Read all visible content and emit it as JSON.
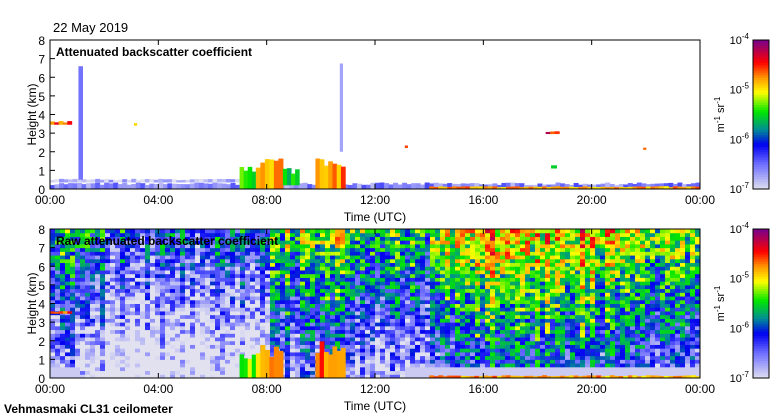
{
  "header": {
    "date": "22 May 2019"
  },
  "footer": {
    "instrument": "Vehmasmaki CL31 ceilometer"
  },
  "chart_data": [
    {
      "type": "heatmap",
      "title": "Attenuated backscatter coefficient",
      "xlabel": "Time (UTC)",
      "ylabel": "Height (km)",
      "xlim": [
        0,
        24
      ],
      "ylim": [
        0,
        8
      ],
      "xticks": [
        "00:00",
        "04:00",
        "08:00",
        "12:00",
        "16:00",
        "20:00",
        "00:00"
      ],
      "yticks": [
        "0",
        "1",
        "2",
        "3",
        "4",
        "5",
        "6",
        "7",
        "8"
      ],
      "colorbar": {
        "label_base": "m",
        "label_exp1": "-1",
        "label_mid": " sr",
        "label_exp2": "-1",
        "scale": "log",
        "range_log10": [
          -7,
          -4
        ],
        "ticks": [
          {
            "base": "10",
            "exp": "-7"
          },
          {
            "base": "10",
            "exp": "-6"
          },
          {
            "base": "10",
            "exp": "-5"
          },
          {
            "base": "10",
            "exp": "-4"
          }
        ]
      },
      "features": [
        {
          "t0": 0,
          "t1": 24,
          "h0": 0,
          "h1": 0.35,
          "log10": -6.6
        },
        {
          "t0": 0,
          "t1": 7,
          "h0": 0.35,
          "h1": 0.55,
          "log10": -6.8
        },
        {
          "t0": 0,
          "t1": 0.8,
          "h0": 3.45,
          "h1": 3.65,
          "log10": -4.6
        },
        {
          "t0": 1.05,
          "t1": 1.2,
          "h0": 0.5,
          "h1": 6.7,
          "log10": -6.4
        },
        {
          "t0": 3.1,
          "t1": 3.2,
          "h0": 3.4,
          "h1": 3.6,
          "log10": -4.7
        },
        {
          "t0": 7.0,
          "t1": 7.6,
          "h0": 0,
          "h1": 1.5,
          "log10": -5.3
        },
        {
          "t0": 7.6,
          "t1": 8.6,
          "h0": 0,
          "h1": 1.8,
          "log10": -4.9
        },
        {
          "t0": 8.6,
          "t1": 9.2,
          "h0": 0.2,
          "h1": 1.2,
          "log10": -5.5
        },
        {
          "t0": 9.8,
          "t1": 10.9,
          "h0": 0,
          "h1": 2.0,
          "log10": -4.7
        },
        {
          "t0": 10.7,
          "t1": 10.8,
          "h0": 2.0,
          "h1": 7.0,
          "log10": -6.5
        },
        {
          "t0": 13.1,
          "t1": 13.2,
          "h0": 2.2,
          "h1": 2.35,
          "log10": -4.5
        },
        {
          "t0": 18.3,
          "t1": 18.8,
          "h0": 2.95,
          "h1": 3.1,
          "log10": -4.4
        },
        {
          "t0": 18.5,
          "t1": 18.7,
          "h0": 1.1,
          "h1": 1.3,
          "log10": -5.5
        },
        {
          "t0": 21.9,
          "t1": 22.0,
          "h0": 2.1,
          "h1": 2.3,
          "log10": -4.5
        },
        {
          "t0": 14,
          "t1": 24,
          "h0": 0,
          "h1": 0.15,
          "log10": -4.8
        }
      ]
    },
    {
      "type": "heatmap",
      "title": "Raw attenuated backscatter coefficient",
      "xlabel": "Time (UTC)",
      "ylabel": "Height (km)",
      "xlim": [
        0,
        24
      ],
      "ylim": [
        0,
        8
      ],
      "xticks": [
        "00:00",
        "04:00",
        "08:00",
        "12:00",
        "16:00",
        "20:00",
        "00:00"
      ],
      "yticks": [
        "0",
        "1",
        "2",
        "3",
        "4",
        "5",
        "6",
        "7",
        "8"
      ],
      "colorbar": {
        "label_base": "m",
        "label_exp1": "-1",
        "label_mid": " sr",
        "label_exp2": "-1",
        "scale": "log",
        "range_log10": [
          -7,
          -4
        ],
        "ticks": [
          {
            "base": "10",
            "exp": "-7"
          },
          {
            "base": "10",
            "exp": "-6"
          },
          {
            "base": "10",
            "exp": "-5"
          },
          {
            "base": "10",
            "exp": "-4"
          }
        ]
      },
      "noise_top_log10_by_hour": [
        -5.6,
        -5.8,
        -6.0,
        -6.1,
        -6.0,
        -6.1,
        -6.0,
        -5.9,
        -5.3,
        -5.4,
        -5.2,
        -5.3,
        -5.5,
        -5.6,
        -5.2,
        -4.8,
        -4.7,
        -4.8,
        -4.9,
        -4.9,
        -5.0,
        -5.1,
        -5.3,
        -5.3
      ],
      "features": [
        {
          "t0": 7.0,
          "t1": 7.6,
          "h0": 0,
          "h1": 1.5,
          "log10": -5.3
        },
        {
          "t0": 7.6,
          "t1": 8.6,
          "h0": 0,
          "h1": 1.8,
          "log10": -4.9
        },
        {
          "t0": 9.8,
          "t1": 10.9,
          "h0": 0,
          "h1": 2.0,
          "log10": -4.7
        },
        {
          "t0": 0,
          "t1": 0.8,
          "h0": 3.45,
          "h1": 3.6,
          "log10": -4.6
        },
        {
          "t0": 14,
          "t1": 24,
          "h0": 0,
          "h1": 0.15,
          "log10": -4.8
        }
      ]
    }
  ]
}
